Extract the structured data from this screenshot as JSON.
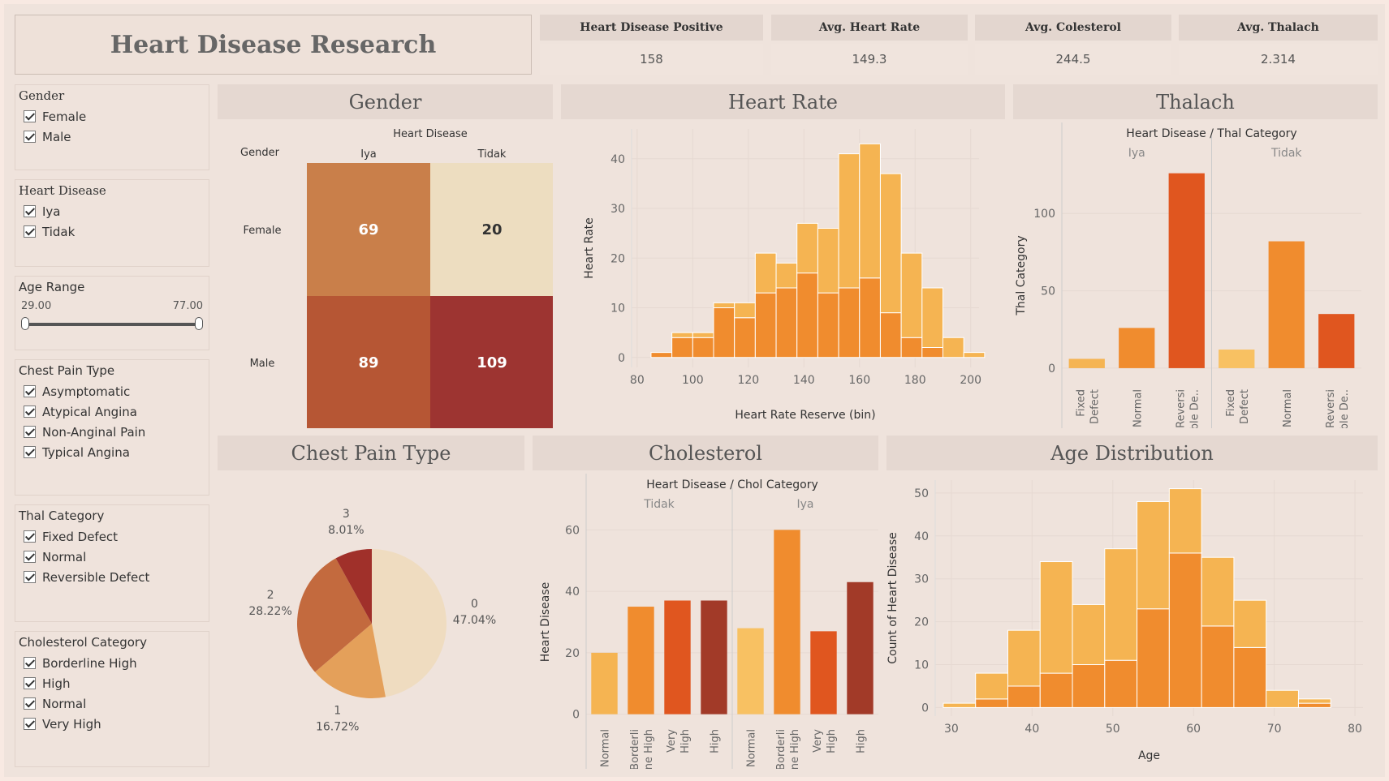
{
  "dashboard": {
    "title": "Heart Disease Research"
  },
  "kpis": [
    {
      "label": "Heart Disease Positive",
      "value": "158"
    },
    {
      "label": "Avg. Heart Rate",
      "value": "149.3"
    },
    {
      "label": "Avg. Colesterol",
      "value": "244.5"
    },
    {
      "label": "Avg. Thalach",
      "value": "2.314"
    }
  ],
  "filters": {
    "gender": {
      "title": "Gender",
      "options": [
        "Female",
        "Male"
      ]
    },
    "heart_disease": {
      "title": "Heart Disease",
      "options": [
        "Iya",
        "Tidak"
      ]
    },
    "age_range": {
      "title": "Age Range",
      "min": "29.00",
      "max": "77.00"
    },
    "chest_pain": {
      "title": "Chest Pain Type",
      "options": [
        "Asymptomatic",
        "Atypical Angina",
        "Non-Anginal Pain",
        "Typical Angina"
      ]
    },
    "thal": {
      "title": "Thal Category",
      "options": [
        "Fixed Defect",
        "Normal",
        "Reversible Defect"
      ]
    },
    "chol": {
      "title": "Cholesterol Category",
      "options": [
        "Borderline High",
        "High",
        "Normal",
        "Very High"
      ]
    }
  },
  "panels": {
    "gender": "Gender",
    "heart_rate": "Heart Rate",
    "thalach": "Thalach",
    "chest_pain": "Chest Pain Type",
    "cholesterol": "Cholesterol",
    "age": "Age Distribution"
  },
  "colors": {
    "light": "#f5b452",
    "mid": "#f08c2e",
    "dark": "#e0561f",
    "darker": "#a23a28",
    "pale": "#f8c162",
    "grid": "#e6d9d2",
    "bar_stroke": "#ffffff"
  },
  "chart_data": [
    {
      "id": "gender_heatmap",
      "type": "heatmap",
      "title": "Heart Disease",
      "row_header": "Gender",
      "columns": [
        "Iya",
        "Tidak"
      ],
      "rows": [
        "Female",
        "Male"
      ],
      "values": [
        [
          69,
          20
        ],
        [
          89,
          109
        ]
      ],
      "colors": [
        [
          "#c97f4a",
          "#edddc0"
        ],
        [
          "#b65634",
          "#9d3431"
        ]
      ]
    },
    {
      "id": "heart_rate_hist",
      "type": "bar",
      "stacked": true,
      "xlabel": "Heart Rate Reserve (bin)",
      "ylabel": "Heart Rate",
      "x_bins": [
        85,
        92.5,
        100,
        107.5,
        115,
        122.5,
        130,
        137.5,
        145,
        152.5,
        160,
        167.5,
        175,
        182.5,
        190,
        197.5
      ],
      "bin_width": 7.5,
      "series": [
        {
          "values": [
            1,
            4,
            4,
            10,
            8,
            13,
            14,
            17,
            13,
            14,
            16,
            9,
            4,
            2,
            0,
            0
          ]
        },
        {
          "values": [
            0,
            1,
            1,
            1,
            3,
            8,
            5,
            10,
            13,
            27,
            27,
            28,
            17,
            12,
            4,
            1
          ]
        }
      ],
      "xlim": [
        78,
        203
      ],
      "ylim": [
        -2,
        46
      ],
      "xticks": [
        80,
        100,
        120,
        140,
        160,
        180,
        200
      ],
      "yticks": [
        0,
        10,
        20,
        30,
        40
      ]
    },
    {
      "id": "thalach_bars",
      "type": "bar",
      "title": "Heart Disease / Thal Category",
      "ylabel": "Thal Category",
      "groups": [
        "Iya",
        "Tidak"
      ],
      "categories": [
        [
          "Fixed",
          "Defect"
        ],
        [
          "Normal"
        ],
        [
          "Reversi",
          "ble De.."
        ],
        [
          "Fixed",
          "Defect"
        ],
        [
          "Normal"
        ],
        [
          "Reversi",
          "ble De.."
        ]
      ],
      "values": [
        6,
        26,
        126,
        12,
        82,
        35
      ],
      "bar_colors": [
        "#f5b452",
        "#f08c2e",
        "#e0561f",
        "#f8c162",
        "#f08c2e",
        "#e0561f"
      ],
      "ylim": [
        -10,
        130
      ],
      "yticks": [
        0,
        50,
        100
      ]
    },
    {
      "id": "chest_pain_pie",
      "type": "pie",
      "slices": [
        {
          "label": "0",
          "pct": "47.04%",
          "value": 47.04,
          "color": "#efdcc0"
        },
        {
          "label": "1",
          "pct": "16.72%",
          "value": 16.72,
          "color": "#e4a05a"
        },
        {
          "label": "2",
          "pct": "28.22%",
          "value": 28.22,
          "color": "#c36a3e"
        },
        {
          "label": "3",
          "pct": "8.01%",
          "value": 8.01,
          "color": "#a0302a"
        }
      ]
    },
    {
      "id": "cholesterol_bars",
      "type": "bar",
      "title": "Heart Disease / Chol Category",
      "ylabel": "Heart Disease",
      "groups": [
        "Tidak",
        "Iya"
      ],
      "categories": [
        [
          "Normal"
        ],
        [
          "Borderli",
          "ne High"
        ],
        [
          "Very",
          "High"
        ],
        [
          "High"
        ],
        [
          "Normal"
        ],
        [
          "Borderli",
          "ne High"
        ],
        [
          "Very",
          "High"
        ],
        [
          "High"
        ]
      ],
      "values": [
        20,
        35,
        37,
        37,
        28,
        60,
        27,
        43
      ],
      "bar_colors": [
        "#f5b452",
        "#f08c2e",
        "#e0561f",
        "#a23a28",
        "#f8c162",
        "#f08c2e",
        "#e0561f",
        "#a23a28"
      ],
      "ylim": [
        -3,
        63
      ],
      "yticks": [
        0,
        20,
        40,
        60
      ]
    },
    {
      "id": "age_hist",
      "type": "bar",
      "stacked": true,
      "xlabel": "Age",
      "ylabel": "Count of Heart Disease",
      "x_bins": [
        29,
        33,
        37,
        41,
        45,
        49,
        53,
        57,
        61,
        65,
        69,
        73,
        77
      ],
      "bin_width": 4,
      "series": [
        {
          "values": [
            0,
            2,
            5,
            8,
            10,
            11,
            23,
            36,
            19,
            14,
            0,
            1
          ]
        },
        {
          "values": [
            1,
            6,
            13,
            26,
            14,
            26,
            25,
            15,
            16,
            11,
            4,
            1
          ]
        }
      ],
      "xlim": [
        28,
        81
      ],
      "ylim": [
        -2,
        53
      ],
      "xticks": [
        30,
        40,
        50,
        60,
        70,
        80
      ],
      "yticks": [
        0,
        10,
        20,
        30,
        40,
        50
      ]
    }
  ]
}
